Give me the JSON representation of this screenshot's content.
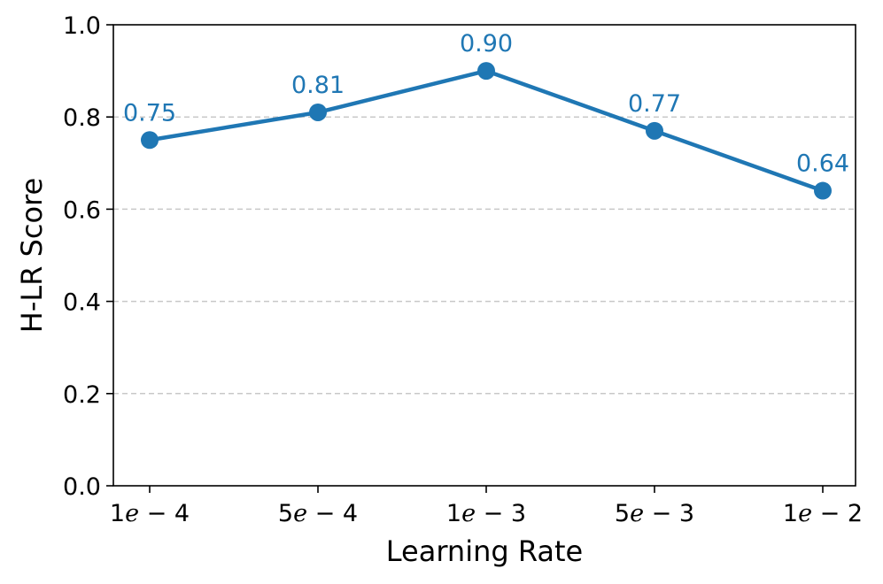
{
  "chart_data": {
    "type": "line",
    "title": "",
    "xlabel": "Learning Rate",
    "ylabel": "H-LR Score",
    "categories": [
      "1e-4",
      "5e-4",
      "1e-3",
      "5e-3",
      "1e-2"
    ],
    "category_parts": [
      {
        "mantissa": "1",
        "exp_letter": "e",
        "exponent": "− 4"
      },
      {
        "mantissa": "5",
        "exp_letter": "e",
        "exponent": "− 4"
      },
      {
        "mantissa": "1",
        "exp_letter": "e",
        "exponent": "− 3"
      },
      {
        "mantissa": "5",
        "exp_letter": "e",
        "exponent": "− 3"
      },
      {
        "mantissa": "1",
        "exp_letter": "e",
        "exponent": "− 2"
      }
    ],
    "series": [
      {
        "name": "H-LR Score",
        "values": [
          0.75,
          0.81,
          0.9,
          0.77,
          0.64
        ],
        "labels": [
          "0.75",
          "0.81",
          "0.90",
          "0.77",
          "0.64"
        ],
        "color": "#1f77b4"
      }
    ],
    "ylim": [
      0.0,
      1.0
    ],
    "yticks": [
      0.0,
      0.2,
      0.4,
      0.6,
      0.8,
      1.0
    ],
    "ytick_labels": [
      "0.0",
      "0.2",
      "0.4",
      "0.6",
      "0.8",
      "1.0"
    ],
    "grid": "y-dashed",
    "grid_color": "#c8c8c8"
  }
}
